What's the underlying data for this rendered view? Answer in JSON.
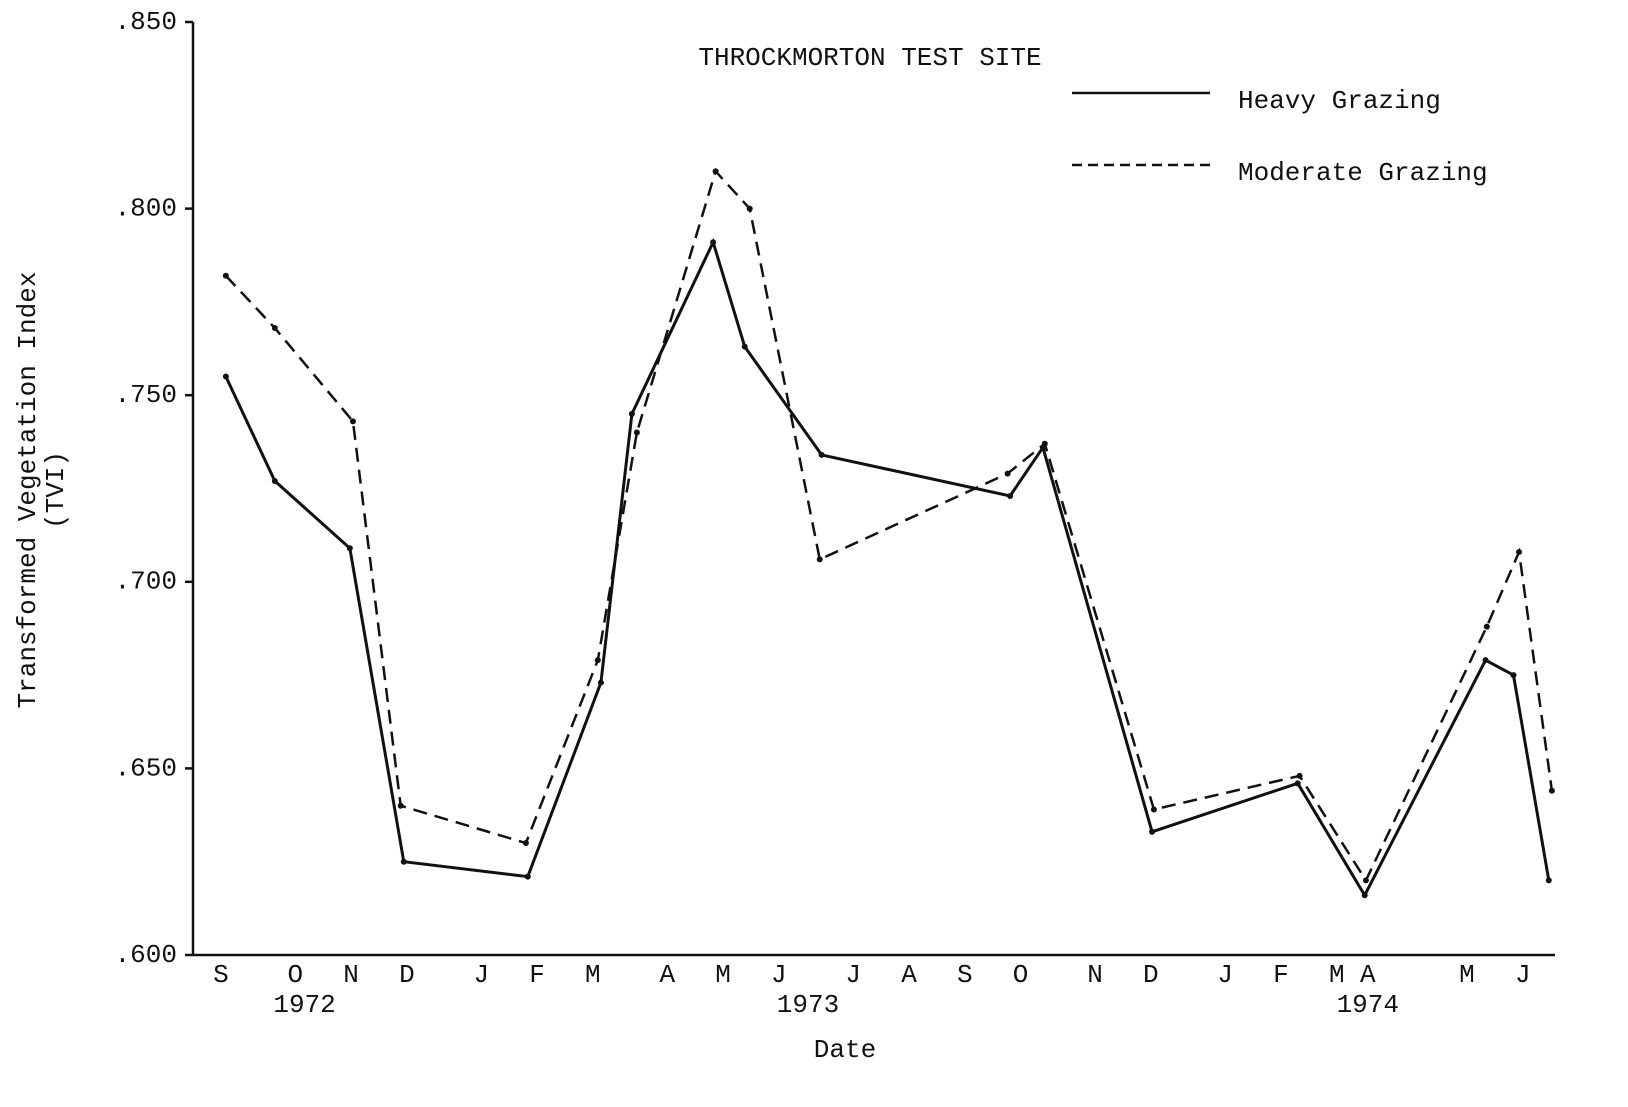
{
  "chart_data": {
    "type": "line",
    "title": "THROCKMORTON TEST SITE",
    "xlabel": "Date",
    "ylabel": "Transformed Vegetation Index",
    "ylabel_sub": "(TVI)",
    "xlim": [
      -0.45,
      21.52
    ],
    "xticks": [
      {
        "value": 0,
        "label": "S"
      },
      {
        "value": 1.2,
        "label": "O"
      },
      {
        "value": 2.1,
        "label": "N"
      },
      {
        "value": 3.0,
        "label": "D"
      },
      {
        "value": 4.2,
        "label": "J"
      },
      {
        "value": 5.1,
        "label": "F"
      },
      {
        "value": 6.0,
        "label": "M"
      },
      {
        "value": 7.2,
        "label": "A"
      },
      {
        "value": 8.1,
        "label": "M"
      },
      {
        "value": 9.0,
        "label": "J"
      },
      {
        "value": 10.2,
        "label": "J"
      },
      {
        "value": 11.1,
        "label": "A"
      },
      {
        "value": 12.0,
        "label": "S"
      },
      {
        "value": 12.9,
        "label": "O"
      },
      {
        "value": 14.1,
        "label": "N"
      },
      {
        "value": 15.0,
        "label": "D"
      },
      {
        "value": 16.2,
        "label": "J"
      },
      {
        "value": 17.1,
        "label": "F"
      },
      {
        "value": 18.0,
        "label": "M"
      },
      {
        "value": 18.5,
        "label": "A"
      },
      {
        "value": 20.1,
        "label": "M"
      },
      {
        "value": 21.0,
        "label": "J"
      }
    ],
    "year_labels": [
      {
        "label": "1972",
        "x": 1.35
      },
      {
        "label": "1973",
        "x": 9.47
      },
      {
        "label": "1974",
        "x": 18.5
      }
    ],
    "ylim": [
      0.6,
      0.85
    ],
    "yticks": [
      {
        "value": 0.6,
        "label": ".600"
      },
      {
        "value": 0.65,
        "label": ".650"
      },
      {
        "value": 0.7,
        "label": ".700"
      },
      {
        "value": 0.75,
        "label": ".750"
      },
      {
        "value": 0.8,
        "label": ".800"
      },
      {
        "value": 0.85,
        "label": ".850"
      }
    ],
    "legend": "upper right",
    "series": [
      {
        "name": "Heavy Grazing",
        "color": "#111111",
        "dash": "solid",
        "x": [
          0.08,
          0.87,
          2.08,
          2.95,
          4.95,
          6.13,
          6.63,
          7.94,
          8.45,
          9.69,
          12.73,
          13.26,
          15.02,
          17.37,
          18.45,
          20.4,
          20.85,
          21.42
        ],
        "values": [
          0.755,
          0.727,
          0.709,
          0.625,
          0.621,
          0.673,
          0.745,
          0.791,
          0.763,
          0.734,
          0.723,
          0.736,
          0.633,
          0.646,
          0.616,
          0.679,
          0.675,
          0.62
        ]
      },
      {
        "name": "Moderate Grazing",
        "color": "#111111",
        "dash": "dashed",
        "x": [
          0.08,
          0.87,
          2.13,
          2.9,
          4.92,
          6.08,
          6.71,
          7.98,
          8.53,
          9.66,
          12.69,
          13.29,
          15.05,
          17.4,
          18.47,
          20.42,
          20.94,
          21.47
        ],
        "values": [
          0.782,
          0.768,
          0.743,
          0.64,
          0.63,
          0.679,
          0.74,
          0.81,
          0.8,
          0.706,
          0.729,
          0.737,
          0.639,
          0.648,
          0.62,
          0.688,
          0.708,
          0.644
        ]
      }
    ]
  }
}
